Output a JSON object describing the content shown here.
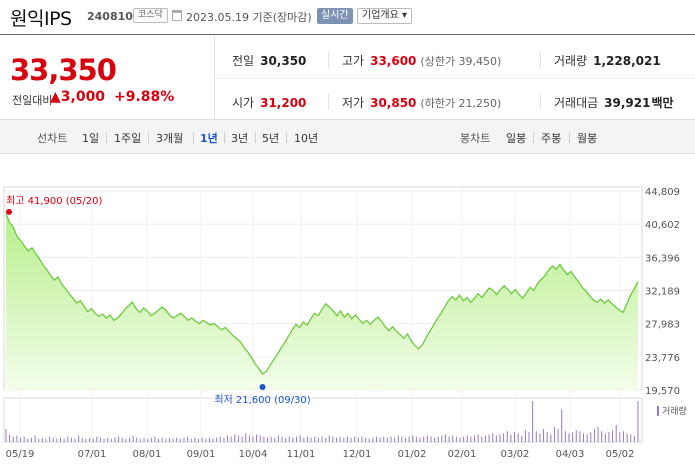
{
  "header": {
    "stock_name": "원익IPS",
    "stock_code": "240810",
    "market": "코스닥",
    "date": "2023.05.19 기준(장마감)",
    "realtime_label": "실시간",
    "company_overview_label": "기업개요 ▾"
  },
  "quote": {
    "price": "33,350",
    "change_label": "전일대비",
    "change_value": "▲3,000",
    "change_pct": "+9.88%",
    "prev_close_label": "전일",
    "prev_close": "30,350",
    "high_label": "고가",
    "high": "33,600",
    "upper_limit": "(상한가 39,450)",
    "volume_label": "거래량",
    "volume": "1,228,021",
    "open_label": "시가",
    "open": "31,200",
    "low_label": "저가",
    "low": "30,850",
    "lower_limit": "(하한가 21,250)",
    "amount_label": "거래대금",
    "amount": "39,921",
    "amount_unit": "백만"
  },
  "period_tabs": {
    "line_chart_label": "선차트",
    "line_items": [
      "1일",
      "1주일",
      "3개월",
      "1년",
      "3년",
      "5년",
      "10년"
    ],
    "active": "1년",
    "candle_chart_label": "봉차트",
    "candle_items": [
      "일봉",
      "주봉",
      "월봉"
    ]
  },
  "chart_data": {
    "type": "area",
    "y_ticks": [
      "44,809",
      "40,602",
      "36,396",
      "32,189",
      "27,983",
      "23,776",
      "19,570"
    ],
    "ylim": [
      19570,
      44809
    ],
    "x_ticks": [
      "05/19",
      "07/01",
      "08/01",
      "09/01",
      "10/04",
      "11/01",
      "12/01",
      "01/02",
      "02/01",
      "03/02",
      "04/03",
      "05/02"
    ],
    "high_annotation": "최고 41,900 (05/20)",
    "low_annotation": "최저 21,600 (09/30)",
    "volume_legend": "거래량",
    "price": [
      41900,
      40800,
      40200,
      39000,
      38500,
      37800,
      37200,
      37600,
      36900,
      36200,
      35400,
      34800,
      34100,
      33500,
      33900,
      33000,
      32400,
      31800,
      31200,
      30600,
      30900,
      30200,
      29500,
      29900,
      29300,
      28900,
      29200,
      28700,
      29100,
      28400,
      28700,
      29200,
      29800,
      30300,
      30700,
      29900,
      29400,
      30000,
      29600,
      29000,
      29300,
      29700,
      30100,
      29700,
      29100,
      28700,
      29000,
      29300,
      28900,
      28400,
      28700,
      28300,
      28000,
      28400,
      28100,
      27800,
      28000,
      27600,
      27200,
      27500,
      27000,
      26500,
      26100,
      25700,
      25000,
      24400,
      23700,
      22900,
      22300,
      21600,
      21900,
      22700,
      23400,
      24100,
      24900,
      25600,
      26400,
      27200,
      27900,
      27500,
      28200,
      27800,
      28600,
      29300,
      29000,
      29800,
      30500,
      30100,
      29600,
      29000,
      29600,
      28800,
      29300,
      28600,
      29100,
      28500,
      28000,
      28400,
      27900,
      28400,
      28800,
      28300,
      27600,
      27100,
      27600,
      27000,
      26600,
      26100,
      26700,
      25800,
      25200,
      24800,
      25300,
      26200,
      27000,
      27800,
      28600,
      29300,
      30100,
      30900,
      31400,
      31000,
      31600,
      30900,
      31300,
      30700,
      31200,
      31800,
      31300,
      31900,
      32500,
      32200,
      31700,
      32300,
      32800,
      32300,
      31800,
      32300,
      31700,
      31200,
      31900,
      32600,
      32200,
      33100,
      33600,
      34100,
      34800,
      35300,
      34900,
      35500,
      34800,
      34200,
      34600,
      33900,
      33300,
      32600,
      32100,
      31500,
      31000,
      30700,
      31100,
      30600,
      31000,
      30500,
      30100,
      29700,
      29400,
      30500,
      31600,
      32400,
      33350
    ],
    "volume": [
      12,
      7,
      5,
      6,
      4,
      5,
      3,
      4,
      6,
      3,
      4,
      3,
      5,
      4,
      3,
      4,
      3,
      5,
      4,
      3,
      6,
      4,
      3,
      4,
      3,
      5,
      4,
      3,
      4,
      3,
      4,
      5,
      4,
      3,
      4,
      6,
      4,
      3,
      4,
      3,
      4,
      5,
      3,
      4,
      3,
      4,
      3,
      4,
      3,
      4,
      5,
      3,
      4,
      3,
      4,
      3,
      4,
      3,
      4,
      5,
      4,
      6,
      5,
      7,
      6,
      5,
      8,
      6,
      5,
      7,
      6,
      5,
      4,
      5,
      4,
      6,
      5,
      4,
      5,
      4,
      5,
      6,
      4,
      5,
      4,
      5,
      4,
      5,
      4,
      6,
      5,
      4,
      5,
      4,
      5,
      4,
      5,
      4,
      5,
      4,
      3,
      4,
      5,
      4,
      5,
      4,
      5,
      4,
      6,
      5,
      4,
      5,
      6,
      5,
      4,
      5,
      6,
      5,
      4,
      5,
      6,
      7,
      5,
      6,
      5,
      4,
      5,
      6,
      5,
      6,
      7,
      5,
      6,
      7,
      8,
      6,
      7,
      8,
      10,
      7,
      9,
      8,
      6,
      11,
      9,
      38,
      10,
      8,
      12,
      9,
      7,
      14,
      12,
      30,
      10,
      8,
      9,
      11,
      10,
      8,
      7,
      9,
      12,
      14,
      10,
      8,
      9,
      11,
      16,
      9,
      10,
      8,
      7,
      6,
      38
    ]
  }
}
